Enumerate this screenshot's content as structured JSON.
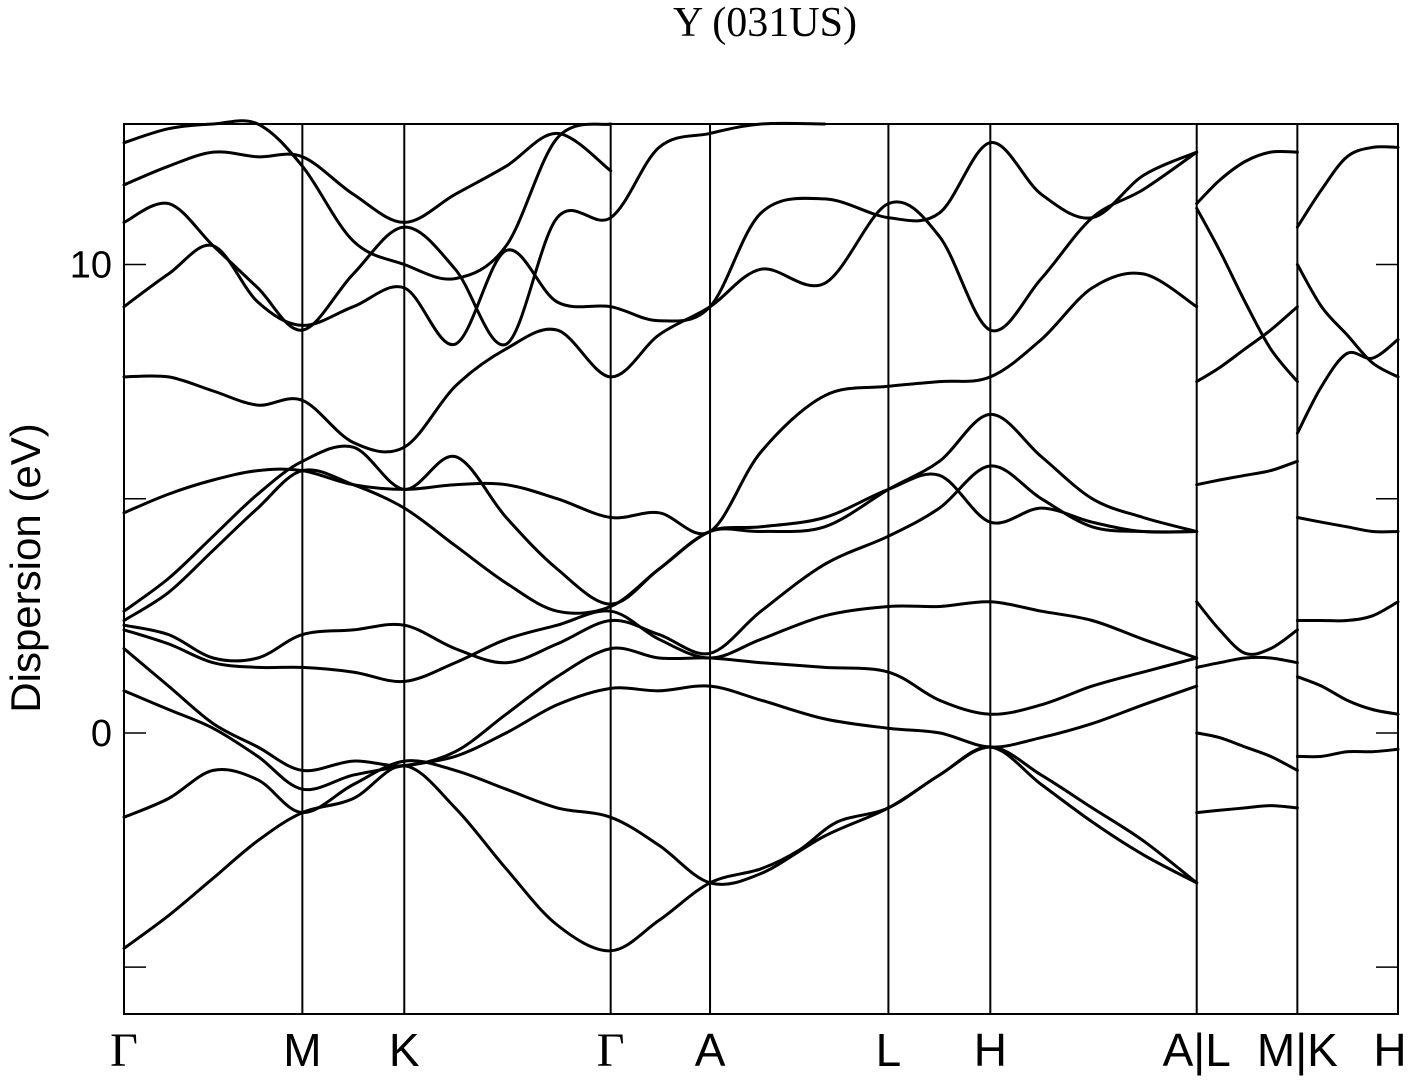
{
  "chart_data": {
    "type": "line",
    "title": "Y (031US)",
    "ylabel": "Dispersion (eV)",
    "xlabel": "",
    "ylim": [
      -6.0,
      13.0
    ],
    "xlim": [
      0,
      10.0
    ],
    "yticks": [
      {
        "value": 10,
        "label": "10"
      },
      {
        "value": 5,
        "label": ""
      },
      {
        "value": 0,
        "label": "0"
      },
      {
        "value": -5,
        "label": ""
      }
    ],
    "kpoints": [
      {
        "pos": 0.0,
        "label": "Γ",
        "greek": true
      },
      {
        "pos": 1.4,
        "label": "M",
        "greek": false
      },
      {
        "pos": 2.2,
        "label": "K",
        "greek": false
      },
      {
        "pos": 3.82,
        "label": "Γ",
        "greek": true
      },
      {
        "pos": 4.6,
        "label": "A",
        "greek": false
      },
      {
        "pos": 6.0,
        "label": "L",
        "greek": false
      },
      {
        "pos": 6.8,
        "label": "H",
        "greek": false
      },
      {
        "pos": 8.42,
        "label": "A|L",
        "greek": false
      },
      {
        "pos": 9.21,
        "label": "M|K",
        "greek": false
      },
      {
        "pos": 10.0,
        "label": "H",
        "greek": false
      }
    ],
    "grid": false,
    "series": [
      {
        "x": [
          0,
          0.35,
          0.7,
          1.05,
          1.4,
          1.8,
          2.2,
          2.6,
          3.0,
          3.4,
          3.82,
          4.2,
          4.6,
          5.0,
          5.3,
          5.6,
          6.0,
          6.4,
          6.8,
          7.2,
          7.6,
          8.0,
          8.42
        ],
        "y": [
          -4.6,
          -3.9,
          -3.1,
          -2.3,
          -1.7,
          -1.4,
          -0.7,
          -1.6,
          -2.9,
          -4.1,
          -4.65,
          -4.0,
          -3.2,
          -2.9,
          -2.5,
          -1.9,
          -1.6,
          -0.9,
          -0.3,
          -1.1,
          -1.9,
          -2.6,
          -3.2
        ]
      },
      {
        "x": [
          0,
          0.35,
          0.7,
          1.05,
          1.4,
          1.8,
          2.2,
          2.6,
          3.0,
          3.4,
          3.82,
          4.2,
          4.6,
          5.0,
          5.5,
          6.0,
          6.4,
          6.8,
          7.2,
          7.6,
          8.0,
          8.42
        ],
        "y": [
          -1.8,
          -1.4,
          -0.8,
          -1.0,
          -1.7,
          -1.1,
          -0.6,
          -0.8,
          -1.2,
          -1.6,
          -1.8,
          -2.4,
          -3.2,
          -3.0,
          -2.2,
          -1.6,
          -0.9,
          -0.3,
          -0.9,
          -1.6,
          -2.3,
          -3.2
        ]
      },
      {
        "x": [
          0,
          0.35,
          0.7,
          1.05,
          1.4,
          1.8,
          2.2,
          2.6,
          3.0,
          3.4,
          3.82,
          4.2,
          4.6,
          5.0,
          5.5,
          6.0,
          6.4,
          6.8,
          7.2,
          7.6,
          8.0,
          8.42
        ],
        "y": [
          0.9,
          0.5,
          0.1,
          -0.5,
          -1.2,
          -0.9,
          -0.7,
          -0.5,
          0.0,
          0.6,
          0.95,
          0.9,
          1.0,
          0.7,
          0.3,
          0.1,
          0.0,
          -0.3,
          -0.1,
          0.2,
          0.6,
          1.0
        ]
      },
      {
        "x": [
          0,
          0.35,
          0.7,
          1.05,
          1.4,
          1.8,
          2.2,
          2.6,
          3.0,
          3.4,
          3.82,
          4.2,
          4.6,
          5.0,
          5.5,
          6.0,
          6.4,
          6.8,
          7.2,
          7.6,
          8.0,
          8.42
        ],
        "y": [
          1.8,
          1.0,
          0.2,
          -0.3,
          -0.8,
          -0.6,
          -0.7,
          -0.4,
          0.4,
          1.2,
          1.8,
          1.6,
          1.6,
          1.5,
          1.4,
          1.3,
          0.7,
          0.4,
          0.6,
          1.0,
          1.3,
          1.6
        ]
      },
      {
        "x": [
          0,
          0.35,
          0.7,
          1.05,
          1.4,
          1.8,
          2.2,
          2.6,
          3.0,
          3.4,
          3.82,
          4.2,
          4.6,
          5.0,
          5.5,
          6.0,
          6.4,
          6.8,
          7.2,
          7.6,
          8.0,
          8.42
        ],
        "y": [
          2.2,
          1.9,
          1.5,
          1.4,
          1.4,
          1.3,
          1.1,
          1.5,
          2.0,
          2.3,
          2.6,
          2.0,
          1.6,
          2.0,
          2.5,
          2.7,
          2.7,
          2.8,
          2.6,
          2.4,
          2.0,
          1.6
        ]
      },
      {
        "x": [
          0,
          0.35,
          0.7,
          1.05,
          1.4,
          1.8,
          2.2,
          2.6,
          3.0,
          3.4,
          3.82,
          4.2,
          4.6,
          5.0,
          5.5,
          6.0,
          6.4,
          6.8,
          7.2,
          7.6,
          8.0,
          8.42
        ],
        "y": [
          2.3,
          2.1,
          1.6,
          1.6,
          2.1,
          2.2,
          2.3,
          1.8,
          1.5,
          1.9,
          2.4,
          2.1,
          1.7,
          2.6,
          3.6,
          4.2,
          4.8,
          5.7,
          5.0,
          4.4,
          4.3,
          4.3
        ]
      },
      {
        "x": [
          0,
          0.35,
          0.7,
          1.05,
          1.4,
          1.8,
          2.2,
          2.6,
          3.0,
          3.4,
          3.82,
          4.2,
          4.6,
          5.0,
          5.5,
          6.0,
          6.4,
          6.8,
          7.2,
          7.6,
          8.0,
          8.42
        ],
        "y": [
          2.4,
          3.0,
          3.9,
          4.8,
          5.6,
          5.3,
          4.8,
          4.0,
          3.2,
          2.6,
          2.7,
          3.5,
          4.3,
          4.3,
          4.4,
          5.2,
          5.8,
          6.8,
          5.9,
          5.0,
          4.6,
          4.3
        ]
      },
      {
        "x": [
          0,
          0.35,
          0.7,
          1.05,
          1.4,
          1.8,
          2.2,
          2.6,
          3.0,
          3.4,
          3.82,
          4.2,
          4.6,
          5.0,
          5.5,
          6.0,
          6.4,
          6.8,
          7.2,
          7.6,
          8.0,
          8.42
        ],
        "y": [
          2.6,
          3.3,
          4.2,
          5.1,
          5.8,
          6.1,
          5.2,
          5.9,
          4.6,
          3.5,
          2.75,
          3.5,
          4.3,
          4.4,
          4.6,
          5.2,
          5.5,
          4.5,
          4.8,
          4.5,
          4.3,
          4.3
        ]
      },
      {
        "x": [
          0,
          0.35,
          0.7,
          1.05,
          1.4,
          1.8,
          2.2,
          2.6,
          3.0,
          3.4,
          3.82,
          4.2,
          4.6,
          5.0,
          5.5,
          6.0,
          6.4,
          6.8,
          7.2,
          7.6,
          8.0,
          8.42
        ],
        "y": [
          4.7,
          5.1,
          5.4,
          5.6,
          5.6,
          5.3,
          5.2,
          5.3,
          5.3,
          5.0,
          4.6,
          4.7,
          4.3,
          6.0,
          7.2,
          7.4,
          7.5,
          7.6,
          8.4,
          9.5,
          9.8,
          9.1
        ]
      },
      {
        "x": [
          0,
          0.35,
          0.7,
          1.05,
          1.4,
          1.8,
          2.2,
          2.6,
          3.0,
          3.4,
          3.82,
          4.2,
          4.6,
          5.0,
          5.5,
          6.0,
          6.4,
          6.8,
          7.2,
          7.6,
          8.0,
          8.42
        ],
        "y": [
          7.6,
          7.6,
          7.3,
          7.0,
          7.1,
          6.2,
          6.1,
          7.4,
          8.2,
          8.6,
          7.6,
          8.5,
          9.1,
          9.9,
          9.6,
          11.3,
          10.6,
          8.6,
          9.7,
          11.0,
          11.6,
          12.4
        ]
      },
      {
        "x": [
          0,
          0.35,
          0.7,
          1.05,
          1.4,
          1.8,
          2.2,
          2.6,
          3.0,
          3.4,
          3.82,
          4.2,
          4.6,
          5.0,
          5.5,
          6.0,
          6.4,
          6.8,
          7.2,
          7.6,
          8.0,
          8.42
        ],
        "y": [
          9.1,
          9.8,
          10.4,
          9.2,
          8.7,
          9.1,
          9.5,
          8.3,
          10.3,
          9.2,
          9.1,
          8.8,
          9.1,
          11.1,
          11.4,
          11.0,
          11.1,
          12.6,
          11.5,
          11.0,
          11.9,
          12.4
        ]
      },
      {
        "x": [
          0,
          0.35,
          0.7,
          1.05,
          1.4,
          1.8,
          2.2,
          2.6,
          3.0,
          3.4,
          3.82,
          4.2,
          4.6,
          5.0,
          5.5
        ],
        "y": [
          10.9,
          11.3,
          10.4,
          9.5,
          8.6,
          9.8,
          10.8,
          9.9,
          8.3,
          11.0,
          11.0,
          12.5,
          12.8,
          13.0,
          13.0
        ]
      },
      {
        "x": [
          0,
          0.35,
          0.7,
          1.05,
          1.4,
          1.8,
          2.2,
          2.6,
          3.0,
          3.4,
          3.82
        ],
        "y": [
          11.7,
          12.1,
          12.4,
          12.3,
          12.3,
          11.5,
          10.9,
          11.5,
          12.1,
          12.8,
          12.0
        ]
      },
      {
        "x": [
          0,
          0.35,
          0.7,
          1.05,
          1.4,
          1.8,
          2.2,
          2.6,
          3.0,
          3.4,
          3.82
        ],
        "y": [
          12.6,
          12.9,
          13.0,
          13.0,
          12.1,
          10.5,
          10.0,
          9.7,
          10.4,
          12.7,
          13.0
        ]
      },
      {
        "x": [
          8.42,
          8.6,
          8.8,
          9.0,
          9.21
        ],
        "y": [
          -1.7,
          -1.65,
          -1.6,
          -1.55,
          -1.6
        ]
      },
      {
        "x": [
          8.42,
          8.6,
          8.8,
          9.0,
          9.21
        ],
        "y": [
          0.0,
          -0.1,
          -0.3,
          -0.5,
          -0.8
        ]
      },
      {
        "x": [
          8.42,
          8.6,
          8.8,
          9.0,
          9.21
        ],
        "y": [
          1.4,
          1.5,
          1.6,
          1.6,
          1.5
        ]
      },
      {
        "x": [
          8.42,
          8.6,
          8.8,
          9.0,
          9.21
        ],
        "y": [
          2.8,
          2.2,
          1.7,
          1.8,
          2.2
        ]
      },
      {
        "x": [
          8.42,
          8.6,
          8.8,
          9.0,
          9.21
        ],
        "y": [
          5.3,
          5.4,
          5.5,
          5.6,
          5.8
        ]
      },
      {
        "x": [
          8.42,
          8.6,
          8.8,
          9.0,
          9.21
        ],
        "y": [
          7.5,
          7.8,
          8.2,
          8.6,
          9.1
        ]
      },
      {
        "x": [
          8.42,
          8.6,
          8.8,
          9.0,
          9.21
        ],
        "y": [
          11.2,
          10.3,
          9.2,
          8.2,
          7.5
        ]
      },
      {
        "x": [
          8.42,
          8.6,
          8.8,
          9.0,
          9.21
        ],
        "y": [
          11.3,
          11.8,
          12.2,
          12.4,
          12.4
        ]
      },
      {
        "x": [
          9.21,
          9.4,
          9.6,
          9.8,
          10.0
        ],
        "y": [
          -0.5,
          -0.5,
          -0.4,
          -0.4,
          -0.35
        ]
      },
      {
        "x": [
          9.21,
          9.4,
          9.6,
          9.8,
          10.0
        ],
        "y": [
          1.2,
          1.0,
          0.7,
          0.5,
          0.4
        ]
      },
      {
        "x": [
          9.21,
          9.4,
          9.6,
          9.8,
          10.0
        ],
        "y": [
          2.4,
          2.4,
          2.4,
          2.5,
          2.8
        ]
      },
      {
        "x": [
          9.21,
          9.4,
          9.6,
          9.8,
          10.0
        ],
        "y": [
          4.6,
          4.5,
          4.4,
          4.3,
          4.3
        ]
      },
      {
        "x": [
          9.21,
          9.4,
          9.6,
          9.8,
          10.0
        ],
        "y": [
          6.4,
          7.4,
          8.1,
          8.0,
          8.4
        ]
      },
      {
        "x": [
          9.21,
          9.4,
          9.6,
          9.8,
          10.0
        ],
        "y": [
          10.0,
          9.1,
          8.5,
          7.9,
          7.6
        ]
      },
      {
        "x": [
          9.21,
          9.4,
          9.6,
          9.8,
          10.0
        ],
        "y": [
          10.8,
          11.6,
          12.3,
          12.5,
          12.5
        ]
      }
    ]
  }
}
